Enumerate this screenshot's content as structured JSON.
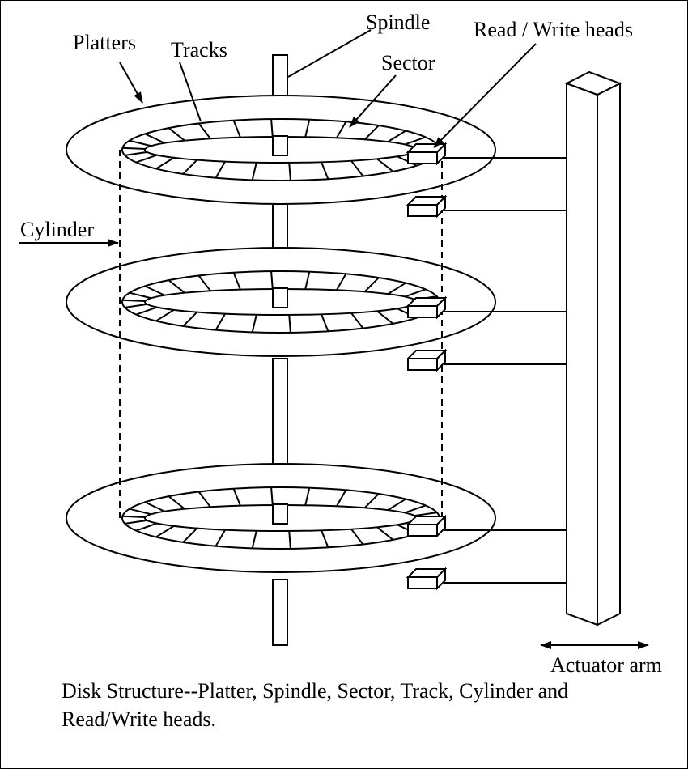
{
  "labels": {
    "platters": "Platters",
    "tracks": "Tracks",
    "spindle": "Spindle",
    "sector": "Sector",
    "read_write_heads": "Read / Write heads",
    "cylinder": "Cylinder",
    "actuator_arm": "Actuator arm"
  },
  "caption": {
    "line1": "Disk Structure--Platter, Spindle, Sector, Track, Cylinder and",
    "line2": "Read/Write heads."
  },
  "diagram": {
    "platter_count": 3,
    "head_count": 6,
    "sectors_per_track": 26
  },
  "colors": {
    "ink": "#000000",
    "background": "#ffffff"
  }
}
